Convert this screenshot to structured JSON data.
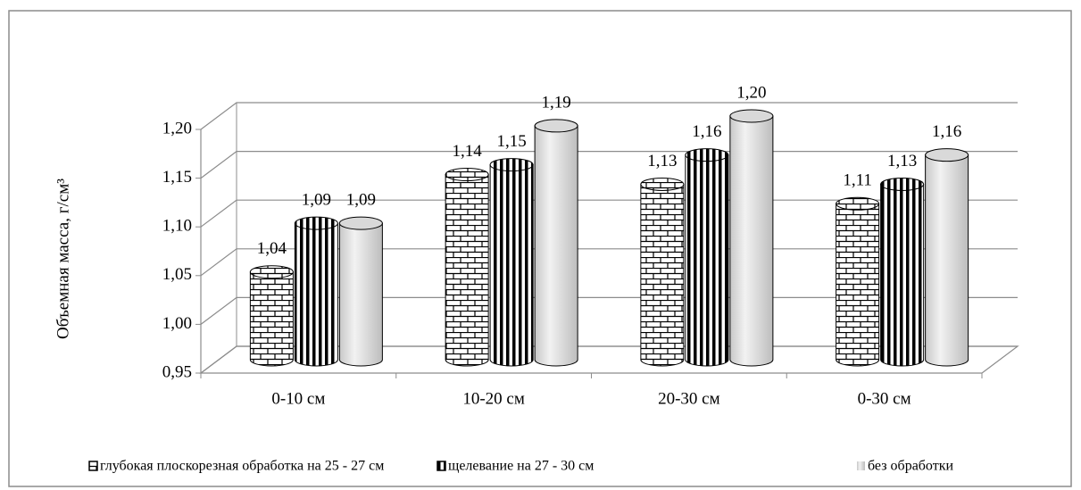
{
  "chart_data": {
    "type": "bar3d",
    "y_label": "Объемная масса,  г/см³",
    "categories": [
      "0-10 см",
      "10-20 см",
      "20-30 см",
      "0-30 см"
    ],
    "series": [
      {
        "name": "глубокая плоскорезная обработка на 25 - 27 см",
        "color": "#000000",
        "values": [
          1.04,
          1.14,
          1.13,
          1.11
        ],
        "value_labels": [
          "1,04",
          "1,14",
          "1,13",
          "1,11"
        ]
      },
      {
        "name": "щелевание на 27 - 30 см",
        "color": "#000000",
        "values": [
          1.09,
          1.15,
          1.16,
          1.13
        ],
        "value_labels": [
          "1,09",
          "1,15",
          "1,16",
          "1,13"
        ]
      },
      {
        "name": "без обработки",
        "color": "#d9d9d9",
        "values": [
          1.09,
          1.19,
          1.2,
          1.16
        ],
        "value_labels": [
          "1,09",
          "1,19",
          "1,20",
          "1,16"
        ]
      }
    ],
    "ylim": [
      0.95,
      1.2
    ],
    "yticks": [
      {
        "value": 0.95,
        "label": "0,95"
      },
      {
        "value": 1.0,
        "label": "1,00"
      },
      {
        "value": 1.05,
        "label": "1,05"
      },
      {
        "value": 1.1,
        "label": "1,10"
      },
      {
        "value": 1.15,
        "label": "1,15"
      },
      {
        "value": 1.2,
        "label": "1,20"
      }
    ],
    "grid": true,
    "legend": "bottom"
  }
}
